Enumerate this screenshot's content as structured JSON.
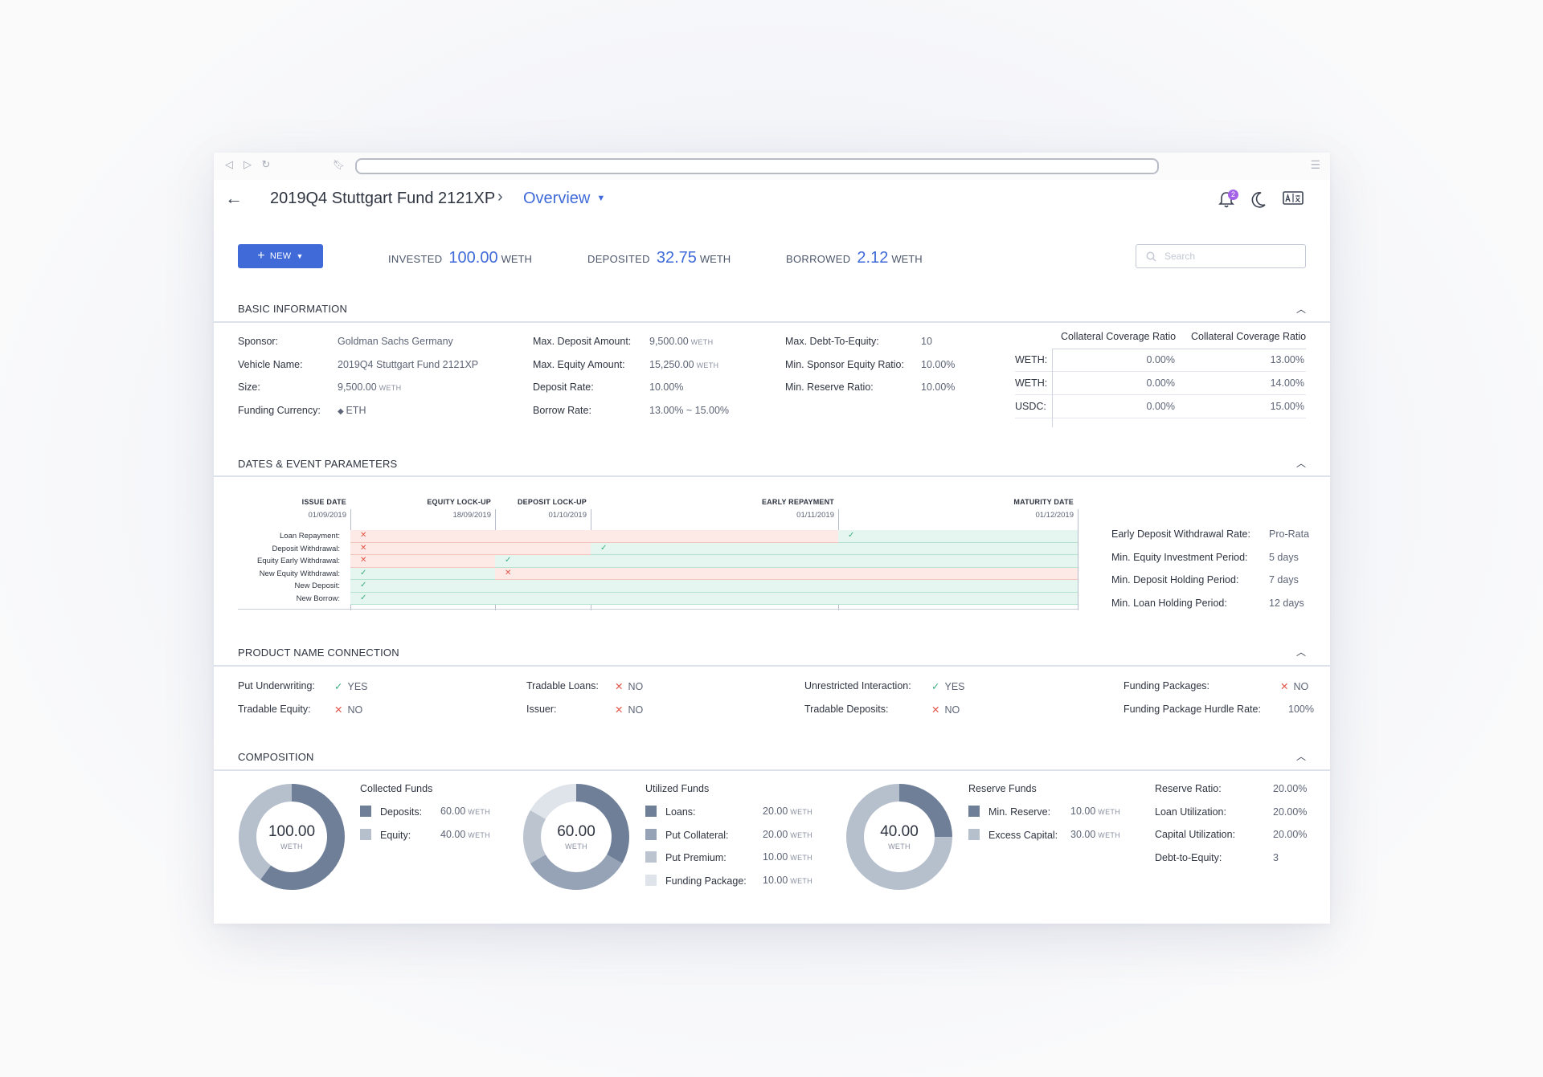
{
  "header": {
    "title": "2019Q4 Stuttgart Fund 2121XP",
    "breadcrumb_current": "Overview",
    "notifications_count": "2"
  },
  "toolbar": {
    "new_label": "NEW",
    "invested_label": "INVESTED",
    "invested_value": "100.00",
    "deposited_label": "DEPOSITED",
    "deposited_value": "32.75",
    "borrowed_label": "BORROWED",
    "borrowed_value": "2.12",
    "unit": "WETH",
    "search_placeholder": "Search"
  },
  "basic": {
    "heading": "BASIC INFORMATION",
    "col1": [
      {
        "k": "Sponsor:",
        "v": "Goldman Sachs Germany",
        "u": ""
      },
      {
        "k": "Vehicle Name:",
        "v": "2019Q4 Stuttgart Fund 2121XP",
        "u": ""
      },
      {
        "k": "Size:",
        "v": "9,500.00",
        "u": "WETH"
      },
      {
        "k": "Funding Currency:",
        "v": "ETH",
        "u": ""
      }
    ],
    "col2": [
      {
        "k": "Max. Deposit Amount:",
        "v": "9,500.00",
        "u": "WETH"
      },
      {
        "k": "Max. Equity Amount:",
        "v": "15,250.00",
        "u": "WETH"
      },
      {
        "k": "Deposit Rate:",
        "v": "10.00%",
        "u": ""
      },
      {
        "k": "Borrow Rate:",
        "v": "13.00% ~ 15.00%",
        "u": ""
      }
    ],
    "col3": [
      {
        "k": "Max. Debt-To-Equity:",
        "v": "10"
      },
      {
        "k": "Min. Sponsor Equity Ratio:",
        "v": "10.00%"
      },
      {
        "k": "Min. Reserve Ratio:",
        "v": "10.00%"
      }
    ],
    "collateral": {
      "headers": [
        "Collateral Coverage Ratio",
        "Collateral Coverage Ratio"
      ],
      "rows": [
        {
          "k": "WETH:",
          "a": "0.00%",
          "b": "13.00%"
        },
        {
          "k": "WETH:",
          "a": "0.00%",
          "b": "14.00%"
        },
        {
          "k": "USDC:",
          "a": "0.00%",
          "b": "15.00%"
        }
      ]
    }
  },
  "dates": {
    "heading": "DATES & EVENT PARAMETERS",
    "events": [
      {
        "name": "ISSUE DATE",
        "date": "01/09/2019"
      },
      {
        "name": "EQUITY LOCK-UP",
        "date": "18/09/2019"
      },
      {
        "name": "DEPOSIT LOCK-UP",
        "date": "01/10/2019"
      },
      {
        "name": "EARLY REPAYMENT",
        "date": "01/11/2019"
      },
      {
        "name": "MATURITY DATE",
        "date": "01/12/2019"
      }
    ],
    "rows": [
      {
        "label": "Loan Repayment:",
        "states": [
          "x",
          "x",
          "x",
          "c"
        ]
      },
      {
        "label": "Deposit Withdrawal:",
        "states": [
          "x",
          "x",
          "c",
          "c"
        ]
      },
      {
        "label": "Equity Early Withdrawal:",
        "states": [
          "x",
          "c",
          "c",
          "c"
        ]
      },
      {
        "label": "New Equity Withdrawal:",
        "states": [
          "c",
          "x",
          "x",
          "x"
        ]
      },
      {
        "label": "New Deposit:",
        "states": [
          "c",
          "c",
          "c",
          "c"
        ]
      },
      {
        "label": "New Borrow:",
        "states": [
          "c",
          "c",
          "c",
          "c"
        ]
      }
    ],
    "params": [
      {
        "k": "Early Deposit Withdrawal Rate:",
        "v": "Pro-Rata"
      },
      {
        "k": "Min. Equity Investment Period:",
        "v": "5 days"
      },
      {
        "k": "Min. Deposit Holding Period:",
        "v": "7 days"
      },
      {
        "k": "Min. Loan Holding Period:",
        "v": "12 days"
      }
    ]
  },
  "product": {
    "heading": "PRODUCT NAME CONNECTION",
    "items": [
      {
        "k": "Put Underwriting:",
        "ok": true,
        "v": "YES"
      },
      {
        "k": "Tradable Equity:",
        "ok": false,
        "v": "NO"
      },
      {
        "k": "Tradable Loans:",
        "ok": false,
        "v": "NO"
      },
      {
        "k": "Issuer:",
        "ok": false,
        "v": "NO"
      },
      {
        "k": "Unrestricted Interaction:",
        "ok": true,
        "v": "YES"
      },
      {
        "k": "Tradable Deposits:",
        "ok": false,
        "v": "NO"
      },
      {
        "k": "Funding Packages:",
        "ok": false,
        "v": "NO"
      },
      {
        "k": "Funding Package Hurdle Rate:",
        "ok": null,
        "v": "100%"
      }
    ]
  },
  "composition": {
    "heading": "COMPOSITION",
    "collected": {
      "title": "Collected Funds",
      "total": "100.00",
      "unit": "WETH",
      "items": [
        {
          "k": "Deposits:",
          "v": "60.00",
          "share": 0.6,
          "color": "#6f7f98"
        },
        {
          "k": "Equity:",
          "v": "40.00",
          "share": 0.4,
          "color": "#b6bfcc"
        }
      ]
    },
    "utilized": {
      "title": "Utilized Funds",
      "total": "60.00",
      "unit": "WETH",
      "items": [
        {
          "k": "Loans:",
          "v": "20.00",
          "share": 0.333,
          "color": "#6f7f98"
        },
        {
          "k": "Put Collateral:",
          "v": "20.00",
          "share": 0.333,
          "color": "#96a3b6"
        },
        {
          "k": "Put Premium:",
          "v": "10.00",
          "share": 0.167,
          "color": "#bcc4d0"
        },
        {
          "k": "Funding Package:",
          "v": "10.00",
          "share": 0.167,
          "color": "#dfe3ea"
        }
      ]
    },
    "reserve": {
      "title": "Reserve Funds",
      "total": "40.00",
      "unit": "WETH",
      "items": [
        {
          "k": "Min. Reserve:",
          "v": "10.00",
          "share": 0.25,
          "color": "#6f7f98"
        },
        {
          "k": "Excess Capital:",
          "v": "30.00",
          "share": 0.75,
          "color": "#b6bfcc"
        }
      ]
    },
    "ratios": [
      {
        "k": "Reserve Ratio:",
        "v": "20.00%"
      },
      {
        "k": "Loan Utilization:",
        "v": "20.00%"
      },
      {
        "k": "Capital Utilization:",
        "v": "20.00%"
      },
      {
        "k": "Debt-to-Equity:",
        "v": "3"
      }
    ]
  },
  "colors": {
    "accent": "#3f6ad8",
    "ok": "#3cae7e",
    "no": "#e3564b",
    "badge": "#a361e8"
  }
}
